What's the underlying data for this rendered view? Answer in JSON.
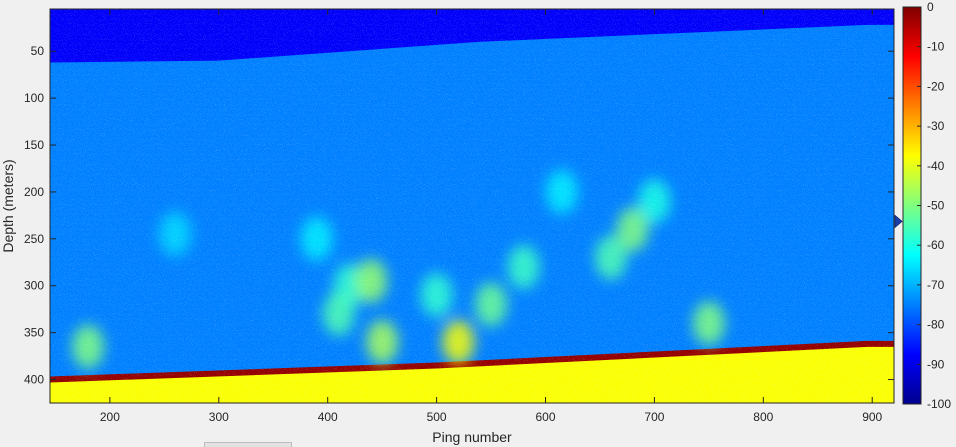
{
  "chart_data": {
    "type": "heatmap",
    "title": "",
    "xlabel": "Ping number",
    "ylabel": "Depth (meters)",
    "xlim": [
      145,
      920
    ],
    "ylim": [
      425,
      5
    ],
    "xticks": [
      200,
      300,
      400,
      500,
      600,
      700,
      800,
      900
    ],
    "yticks": [
      50,
      100,
      150,
      200,
      250,
      300,
      350,
      400
    ],
    "colorbar": {
      "colormap": "jet",
      "limits": [
        -100,
        0
      ],
      "ticks": [
        0,
        -10,
        -20,
        -30,
        -40,
        -50,
        -60,
        -70,
        -80,
        -90,
        -100
      ],
      "marker_value": -54
    },
    "layers": {
      "surface_layer_bottom_depth": [
        [
          145,
          62
        ],
        [
          300,
          60
        ],
        [
          540,
          40
        ],
        [
          895,
          22
        ]
      ],
      "seafloor_depth": [
        [
          145,
          400
        ],
        [
          500,
          385
        ],
        [
          895,
          362
        ]
      ],
      "base_level_db": -75,
      "surface_layer_db": -88,
      "seafloor_db": -2,
      "below_seafloor_db": -38
    },
    "scattering_features": [
      {
        "ping": 420,
        "depth": 300,
        "db": -58
      },
      {
        "ping": 440,
        "depth": 295,
        "db": -48
      },
      {
        "ping": 410,
        "depth": 330,
        "db": -55
      },
      {
        "ping": 390,
        "depth": 250,
        "db": -64
      },
      {
        "ping": 500,
        "depth": 310,
        "db": -58
      },
      {
        "ping": 550,
        "depth": 320,
        "db": -52
      },
      {
        "ping": 580,
        "depth": 280,
        "db": -57
      },
      {
        "ping": 615,
        "depth": 200,
        "db": -64
      },
      {
        "ping": 520,
        "depth": 360,
        "db": -38
      },
      {
        "ping": 660,
        "depth": 270,
        "db": -55
      },
      {
        "ping": 680,
        "depth": 240,
        "db": -50
      },
      {
        "ping": 700,
        "depth": 210,
        "db": -60
      },
      {
        "ping": 260,
        "depth": 245,
        "db": -66
      },
      {
        "ping": 180,
        "depth": 365,
        "db": -50
      },
      {
        "ping": 450,
        "depth": 360,
        "db": -46
      },
      {
        "ping": 750,
        "depth": 340,
        "db": -50
      }
    ]
  }
}
